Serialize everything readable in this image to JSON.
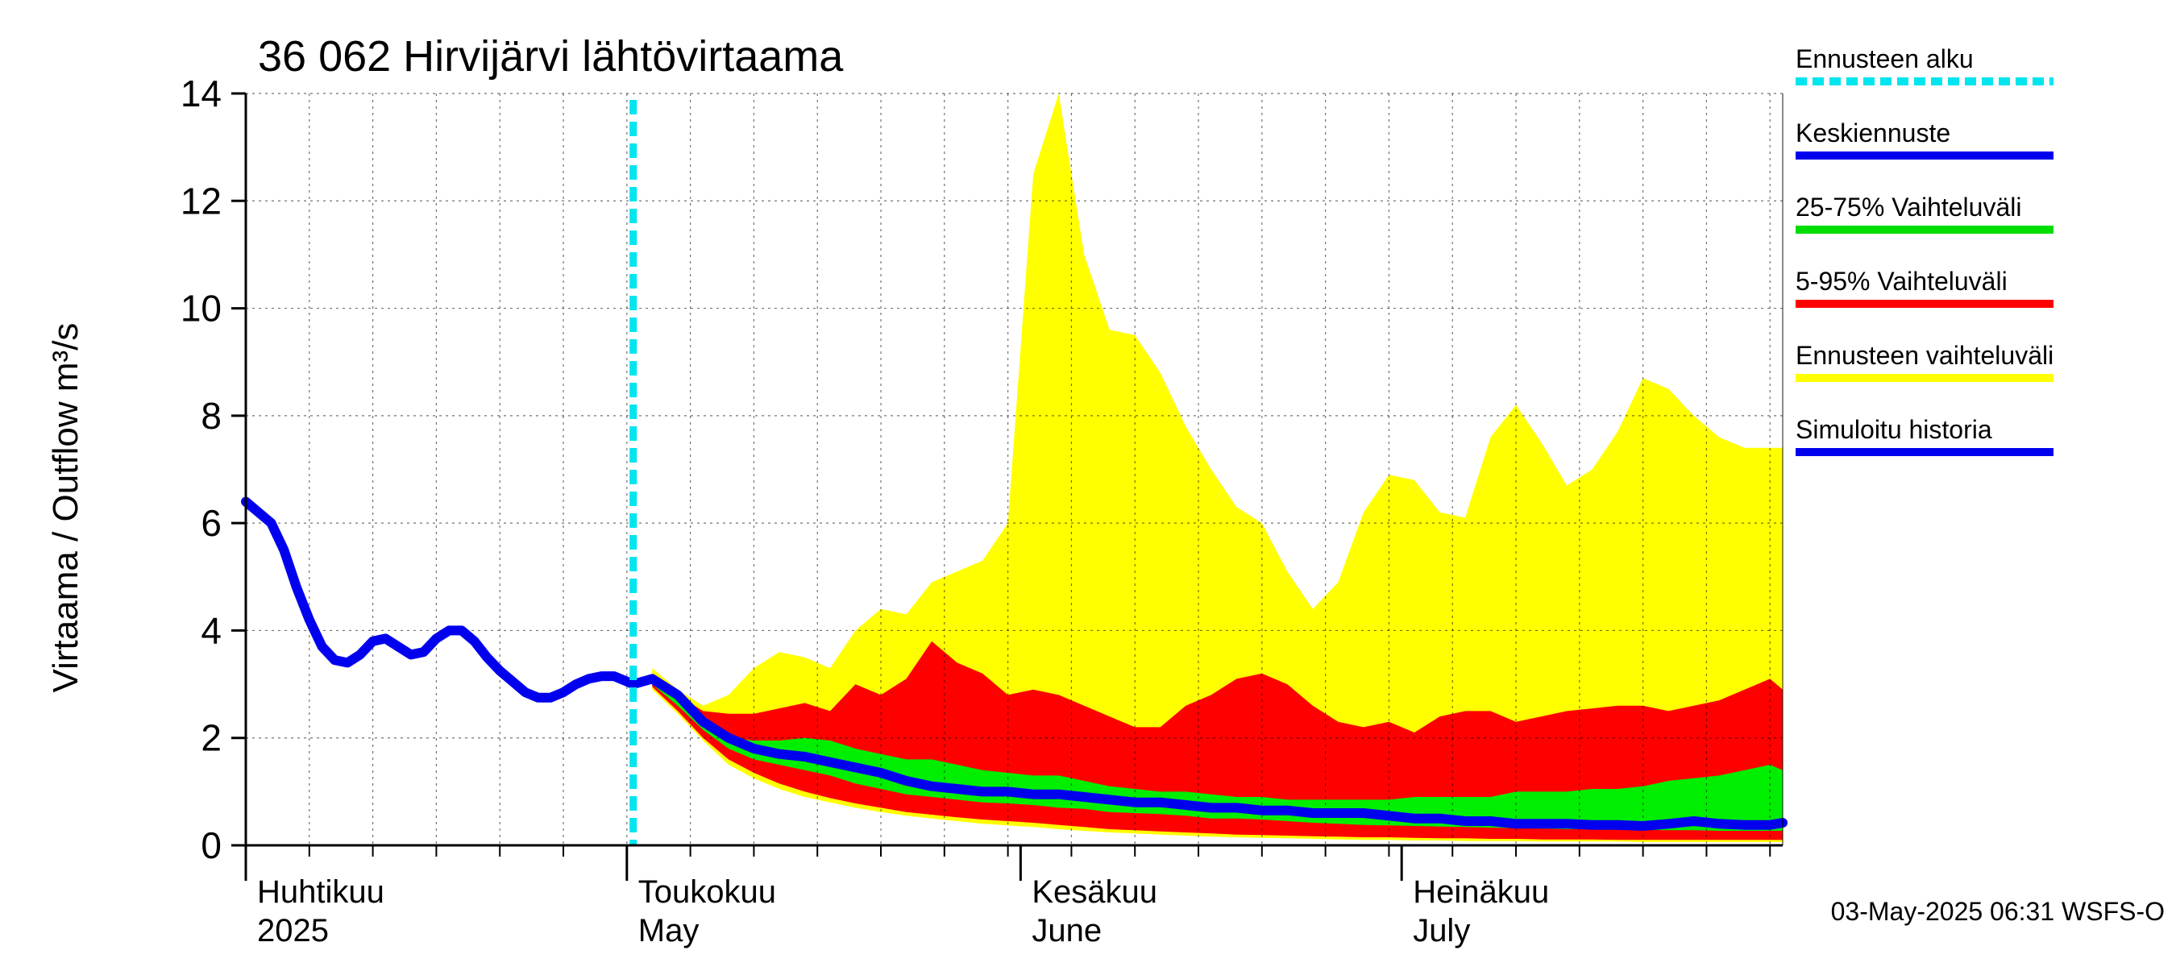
{
  "chart_data": {
    "type": "area",
    "title": "36 062 Hirvijärvi lähtövirtaama",
    "ylabel": "Virtaama / Outflow    m³/s",
    "ylim": [
      0,
      14
    ],
    "yticks": [
      0,
      2,
      4,
      6,
      8,
      10,
      12,
      14
    ],
    "xlim_days": [
      0,
      121
    ],
    "months": [
      {
        "fi": "Huhtikuu",
        "en": "2025",
        "start_day": 0
      },
      {
        "fi": "Toukokuu",
        "en": "May",
        "start_day": 30
      },
      {
        "fi": "Kesäkuu",
        "en": "June",
        "start_day": 61
      },
      {
        "fi": "Heinäkuu",
        "en": "July",
        "start_day": 91
      }
    ],
    "forecast_start_day": 30.5,
    "legend": [
      {
        "label": "Ennusteen alku",
        "color": "#00e5ee",
        "style": "dashed"
      },
      {
        "label": "Keskiennuste",
        "color": "#0000ee",
        "style": "solid"
      },
      {
        "label": "25-75% Vaihteluväli",
        "color": "#00dd00",
        "style": "solid"
      },
      {
        "label": "5-95% Vaihteluväli",
        "color": "#ff0000",
        "style": "solid"
      },
      {
        "label": "Ennusteen vaihteluväli",
        "color": "#ffff00",
        "style": "solid"
      },
      {
        "label": "Simuloitu historia",
        "color": "#0000ee",
        "style": "solid"
      }
    ],
    "timestamp": "03-May-2025 06:31 WSFS-O",
    "forecast_days": [
      32,
      34,
      36,
      38,
      40,
      42,
      44,
      46,
      48,
      50,
      52,
      54,
      56,
      58,
      60,
      62,
      64,
      66,
      68,
      70,
      72,
      74,
      76,
      78,
      80,
      82,
      84,
      86,
      88,
      90,
      92,
      94,
      96,
      98,
      100,
      102,
      104,
      106,
      108,
      110,
      112,
      114,
      116,
      118,
      120,
      121
    ],
    "series": [
      {
        "name": "Simuloitu historia",
        "days": [
          0,
          1,
          2,
          3,
          4,
          5,
          6,
          7,
          8,
          9,
          10,
          11,
          12,
          13,
          14,
          15,
          16,
          17,
          18,
          19,
          20,
          21,
          22,
          23,
          24,
          25,
          26,
          27,
          28,
          29,
          30,
          30.5
        ],
        "values": [
          6.4,
          6.2,
          6.0,
          5.5,
          4.8,
          4.2,
          3.7,
          3.45,
          3.4,
          3.55,
          3.8,
          3.85,
          3.7,
          3.55,
          3.6,
          3.85,
          4.0,
          4.0,
          3.8,
          3.5,
          3.25,
          3.05,
          2.85,
          2.75,
          2.75,
          2.85,
          3.0,
          3.1,
          3.15,
          3.15,
          3.05,
          3.0
        ]
      },
      {
        "name": "Keskiennuste",
        "values": [
          3.1,
          2.8,
          2.3,
          2.0,
          1.8,
          1.7,
          1.65,
          1.55,
          1.45,
          1.35,
          1.2,
          1.1,
          1.05,
          1.0,
          1.0,
          0.95,
          0.95,
          0.9,
          0.85,
          0.8,
          0.8,
          0.75,
          0.7,
          0.7,
          0.65,
          0.65,
          0.6,
          0.6,
          0.6,
          0.55,
          0.5,
          0.5,
          0.45,
          0.45,
          0.4,
          0.4,
          0.4,
          0.38,
          0.38,
          0.36,
          0.4,
          0.45,
          0.4,
          0.38,
          0.38,
          0.42
        ]
      },
      {
        "name": "Ennusteen vaihteluväli max",
        "values": [
          3.3,
          2.9,
          2.6,
          2.8,
          3.3,
          3.6,
          3.5,
          3.3,
          4.0,
          4.4,
          4.3,
          4.9,
          5.1,
          5.3,
          6.0,
          12.5,
          14.0,
          11.0,
          9.6,
          9.5,
          8.8,
          7.8,
          7.0,
          6.3,
          6.0,
          5.1,
          4.4,
          4.9,
          6.2,
          6.9,
          6.8,
          6.2,
          6.1,
          7.6,
          8.2,
          7.5,
          6.7,
          7.0,
          7.7,
          8.7,
          8.5,
          8.0,
          7.6,
          7.4,
          7.4,
          7.4
        ]
      },
      {
        "name": "5-95% yläraja",
        "values": [
          3.2,
          2.8,
          2.5,
          2.45,
          2.45,
          2.55,
          2.65,
          2.5,
          3.0,
          2.8,
          3.1,
          3.8,
          3.4,
          3.2,
          2.8,
          2.9,
          2.8,
          2.6,
          2.4,
          2.2,
          2.2,
          2.6,
          2.8,
          3.1,
          3.2,
          3.0,
          2.6,
          2.3,
          2.2,
          2.3,
          2.1,
          2.4,
          2.5,
          2.5,
          2.3,
          2.4,
          2.5,
          2.55,
          2.6,
          2.6,
          2.5,
          2.6,
          2.7,
          2.9,
          3.1,
          2.9
        ]
      },
      {
        "name": "25-75% yläraja",
        "values": [
          3.1,
          2.75,
          2.3,
          2.0,
          1.95,
          1.95,
          2.0,
          1.95,
          1.8,
          1.7,
          1.6,
          1.6,
          1.5,
          1.4,
          1.35,
          1.3,
          1.3,
          1.2,
          1.1,
          1.05,
          1.0,
          1.0,
          0.95,
          0.9,
          0.9,
          0.85,
          0.85,
          0.85,
          0.85,
          0.85,
          0.9,
          0.9,
          0.9,
          0.9,
          1.0,
          1.0,
          1.0,
          1.05,
          1.05,
          1.1,
          1.2,
          1.25,
          1.3,
          1.4,
          1.5,
          1.4
        ]
      },
      {
        "name": "25-75% alaraja",
        "values": [
          3.0,
          2.6,
          2.15,
          1.8,
          1.6,
          1.5,
          1.4,
          1.3,
          1.15,
          1.05,
          0.95,
          0.9,
          0.85,
          0.8,
          0.78,
          0.75,
          0.7,
          0.68,
          0.62,
          0.6,
          0.58,
          0.55,
          0.5,
          0.5,
          0.48,
          0.45,
          0.42,
          0.4,
          0.38,
          0.37,
          0.36,
          0.35,
          0.34,
          0.33,
          0.32,
          0.31,
          0.3,
          0.3,
          0.3,
          0.29,
          0.28,
          0.28,
          0.27,
          0.27,
          0.27,
          0.27
        ]
      },
      {
        "name": "5-95% alaraja",
        "values": [
          2.95,
          2.5,
          2.0,
          1.6,
          1.35,
          1.15,
          1.0,
          0.88,
          0.78,
          0.7,
          0.62,
          0.57,
          0.52,
          0.48,
          0.45,
          0.42,
          0.38,
          0.34,
          0.3,
          0.28,
          0.26,
          0.24,
          0.22,
          0.2,
          0.19,
          0.18,
          0.17,
          0.16,
          0.15,
          0.15,
          0.14,
          0.13,
          0.13,
          0.12,
          0.12,
          0.11,
          0.11,
          0.11,
          0.1,
          0.1,
          0.1,
          0.1,
          0.1,
          0.1,
          0.1,
          0.1
        ]
      },
      {
        "name": "Ennusteen vaihteluväli min",
        "values": [
          2.9,
          2.45,
          1.95,
          1.5,
          1.25,
          1.05,
          0.9,
          0.8,
          0.7,
          0.62,
          0.55,
          0.5,
          0.45,
          0.4,
          0.37,
          0.34,
          0.3,
          0.27,
          0.24,
          0.22,
          0.2,
          0.18,
          0.16,
          0.15,
          0.14,
          0.13,
          0.12,
          0.11,
          0.1,
          0.1,
          0.09,
          0.09,
          0.08,
          0.08,
          0.08,
          0.07,
          0.07,
          0.07,
          0.07,
          0.06,
          0.06,
          0.06,
          0.06,
          0.06,
          0.06,
          0.06
        ]
      }
    ]
  }
}
